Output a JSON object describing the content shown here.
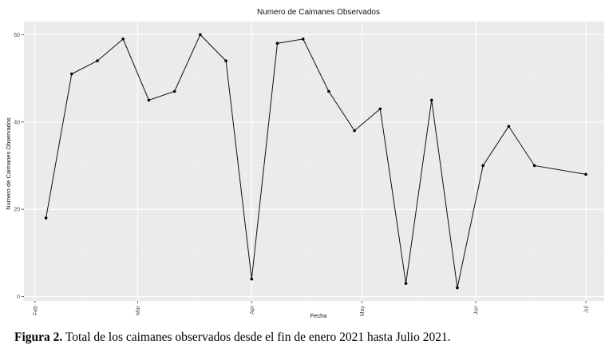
{
  "chart_data": {
    "type": "line",
    "title": "Numero de Caimanes Observados",
    "xlabel": "Fecha",
    "ylabel": "Numero de Caimanes Observados",
    "xlim": [
      "2021-01-29",
      "2021-07-06"
    ],
    "ylim": [
      -1,
      63
    ],
    "x_ticks": [
      {
        "label": "Feb",
        "date": "2021-02-01"
      },
      {
        "label": "Mar",
        "date": "2021-03-01"
      },
      {
        "label": "Apr",
        "date": "2021-04-01"
      },
      {
        "label": "May",
        "date": "2021-05-01"
      },
      {
        "label": "Jun",
        "date": "2021-06-01"
      },
      {
        "label": "Jul",
        "date": "2021-07-01"
      }
    ],
    "y_ticks": [
      0,
      20,
      40,
      60
    ],
    "grid": true,
    "series": [
      {
        "x": [
          "2021-02-04",
          "2021-02-11",
          "2021-02-18",
          "2021-02-25",
          "2021-03-04",
          "2021-03-11",
          "2021-03-18",
          "2021-03-25",
          "2021-04-01",
          "2021-04-08",
          "2021-04-15",
          "2021-04-22",
          "2021-04-29",
          "2021-05-06",
          "2021-05-13",
          "2021-05-20",
          "2021-05-27",
          "2021-06-03",
          "2021-06-10",
          "2021-06-17",
          "2021-07-01"
        ],
        "y": [
          18,
          51,
          54,
          59,
          45,
          47,
          60,
          54,
          4,
          58,
          59,
          47,
          38,
          43,
          3,
          45,
          2,
          30,
          39,
          30,
          28
        ]
      }
    ]
  },
  "caption": {
    "label": "Figura 2.",
    "text": " Total de los caimanes observados desde el fin de enero 2021 hasta Julio 2021."
  }
}
